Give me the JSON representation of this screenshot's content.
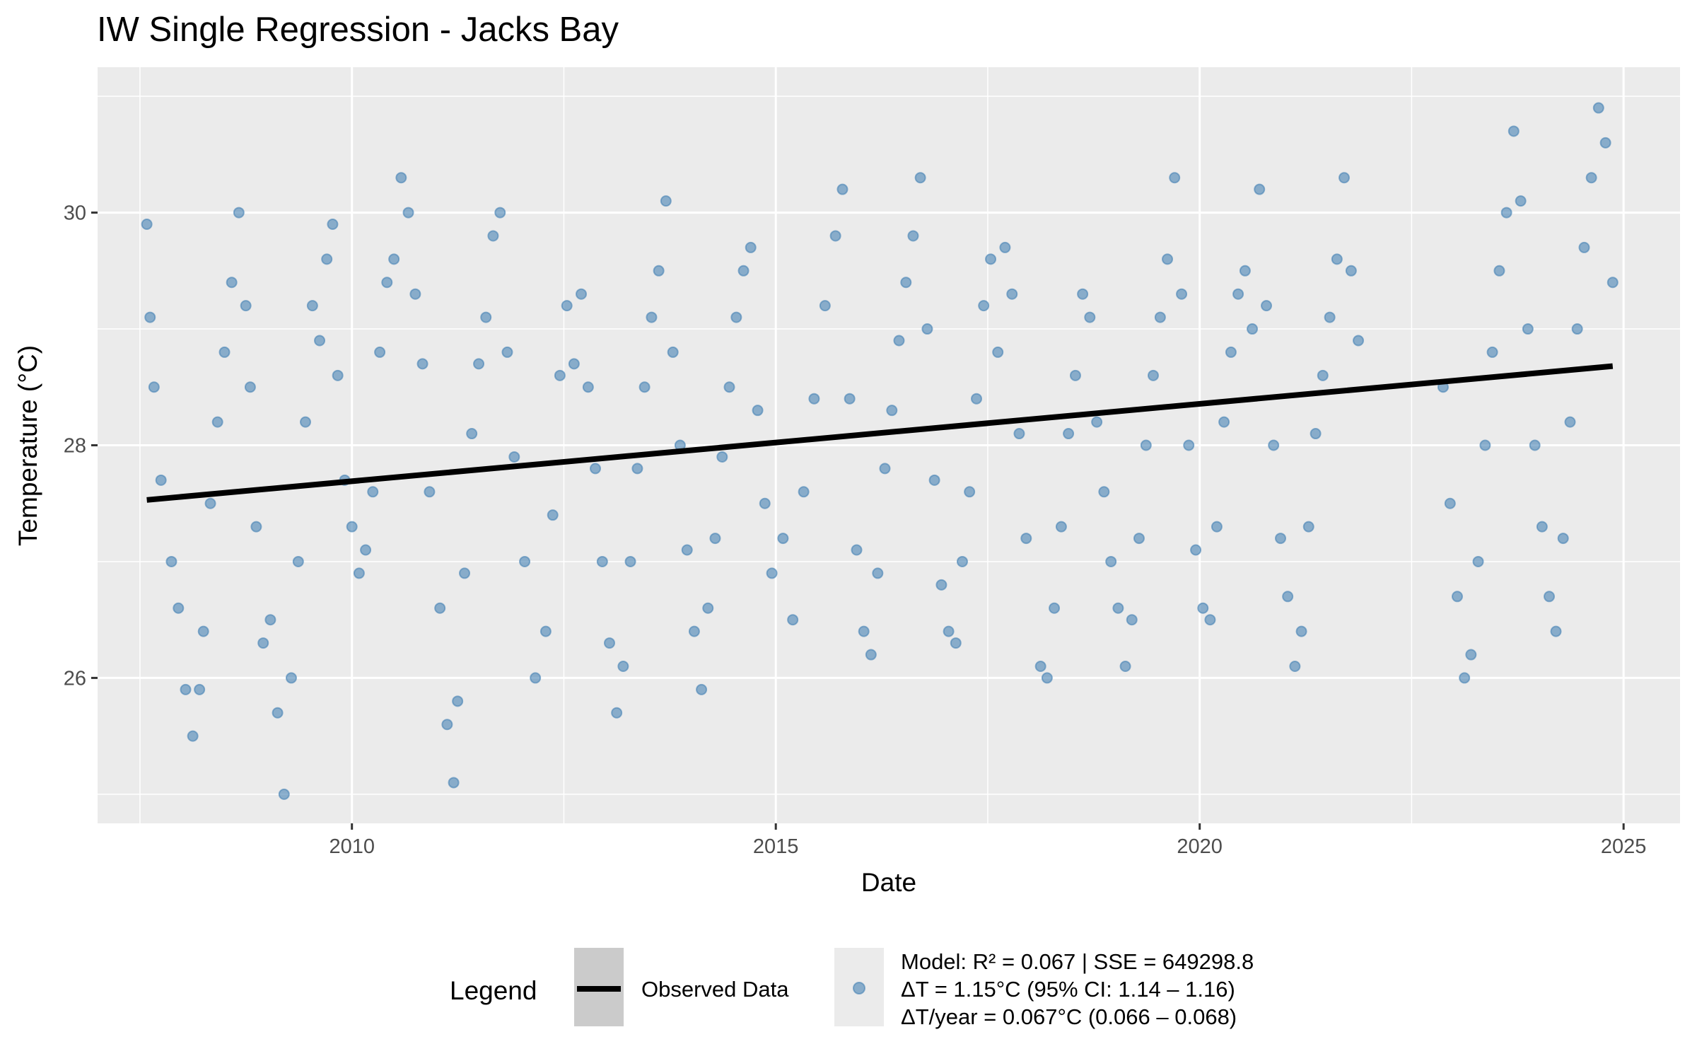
{
  "chart_data": {
    "type": "scatter",
    "title": "IW Single Regression - Jacks Bay",
    "xlabel": "Date",
    "ylabel": "Temperature (°C)",
    "x_ticks": [
      "2010",
      "2015",
      "2020",
      "2025"
    ],
    "y_ticks": [
      "26",
      "28",
      "30"
    ],
    "xlim": [
      "2007-01-01",
      "2025-09-01"
    ],
    "ylim": [
      24.75,
      31.25
    ],
    "grid": true,
    "background": "#ebebeb",
    "series": [
      {
        "name": "Observed Data",
        "kind": "points",
        "color": "#4682b4",
        "points": [
          [
            "2007-08-01",
            29.9
          ],
          [
            "2007-08-15",
            29.1
          ],
          [
            "2007-09-01",
            28.5
          ],
          [
            "2007-10-01",
            27.7
          ],
          [
            "2007-11-15",
            27.0
          ],
          [
            "2007-12-15",
            26.6
          ],
          [
            "2008-01-15",
            25.9
          ],
          [
            "2008-02-15",
            25.5
          ],
          [
            "2008-03-15",
            25.9
          ],
          [
            "2008-04-01",
            26.4
          ],
          [
            "2008-05-01",
            27.5
          ],
          [
            "2008-06-01",
            28.2
          ],
          [
            "2008-07-01",
            28.8
          ],
          [
            "2008-08-01",
            29.4
          ],
          [
            "2008-09-01",
            30.0
          ],
          [
            "2008-10-01",
            29.2
          ],
          [
            "2008-10-20",
            28.5
          ],
          [
            "2008-11-15",
            27.3
          ],
          [
            "2008-12-15",
            26.3
          ],
          [
            "2009-01-15",
            26.5
          ],
          [
            "2009-02-15",
            25.7
          ],
          [
            "2009-03-15",
            25.0
          ],
          [
            "2009-04-15",
            26.0
          ],
          [
            "2009-05-15",
            27.0
          ],
          [
            "2009-06-15",
            28.2
          ],
          [
            "2009-07-15",
            29.2
          ],
          [
            "2009-08-15",
            28.9
          ],
          [
            "2009-09-15",
            29.6
          ],
          [
            "2009-10-10",
            29.9
          ],
          [
            "2009-11-01",
            28.6
          ],
          [
            "2009-12-01",
            27.7
          ],
          [
            "2010-01-01",
            27.3
          ],
          [
            "2010-02-01",
            26.9
          ],
          [
            "2010-03-01",
            27.1
          ],
          [
            "2010-04-01",
            27.6
          ],
          [
            "2010-05-01",
            28.8
          ],
          [
            "2010-06-01",
            29.4
          ],
          [
            "2010-07-01",
            29.6
          ],
          [
            "2010-08-01",
            30.3
          ],
          [
            "2010-09-01",
            30.0
          ],
          [
            "2010-10-01",
            29.3
          ],
          [
            "2010-11-01",
            28.7
          ],
          [
            "2010-12-01",
            27.6
          ],
          [
            "2011-01-15",
            26.6
          ],
          [
            "2011-02-15",
            25.6
          ],
          [
            "2011-03-15",
            25.1
          ],
          [
            "2011-04-01",
            25.8
          ],
          [
            "2011-05-01",
            26.9
          ],
          [
            "2011-06-01",
            28.1
          ],
          [
            "2011-07-01",
            28.7
          ],
          [
            "2011-08-01",
            29.1
          ],
          [
            "2011-09-01",
            29.8
          ],
          [
            "2011-10-01",
            30.0
          ],
          [
            "2011-11-01",
            28.8
          ],
          [
            "2011-12-01",
            27.9
          ],
          [
            "2012-01-15",
            27.0
          ],
          [
            "2012-03-01",
            26.0
          ],
          [
            "2012-04-15",
            26.4
          ],
          [
            "2012-05-15",
            27.4
          ],
          [
            "2012-06-15",
            28.6
          ],
          [
            "2012-07-15",
            29.2
          ],
          [
            "2012-08-15",
            28.7
          ],
          [
            "2012-09-15",
            29.3
          ],
          [
            "2012-10-15",
            28.5
          ],
          [
            "2012-11-15",
            27.8
          ],
          [
            "2012-12-15",
            27.0
          ],
          [
            "2013-01-15",
            26.3
          ],
          [
            "2013-02-15",
            25.7
          ],
          [
            "2013-03-15",
            26.1
          ],
          [
            "2013-04-15",
            27.0
          ],
          [
            "2013-05-15",
            27.8
          ],
          [
            "2013-06-15",
            28.5
          ],
          [
            "2013-07-15",
            29.1
          ],
          [
            "2013-08-15",
            29.5
          ],
          [
            "2013-09-15",
            30.1
          ],
          [
            "2013-10-15",
            28.8
          ],
          [
            "2013-11-15",
            28.0
          ],
          [
            "2013-12-15",
            27.1
          ],
          [
            "2014-01-15",
            26.4
          ],
          [
            "2014-02-15",
            25.9
          ],
          [
            "2014-03-15",
            26.6
          ],
          [
            "2014-04-15",
            27.2
          ],
          [
            "2014-05-15",
            27.9
          ],
          [
            "2014-06-15",
            28.5
          ],
          [
            "2014-07-15",
            29.1
          ],
          [
            "2014-08-15",
            29.5
          ],
          [
            "2014-09-15",
            29.7
          ],
          [
            "2014-10-15",
            28.3
          ],
          [
            "2014-11-15",
            27.5
          ],
          [
            "2014-12-15",
            26.9
          ],
          [
            "2015-02-01",
            27.2
          ],
          [
            "2015-03-15",
            26.5
          ],
          [
            "2015-05-01",
            27.6
          ],
          [
            "2015-06-15",
            28.4
          ],
          [
            "2015-08-01",
            29.2
          ],
          [
            "2015-09-15",
            29.8
          ],
          [
            "2015-10-15",
            30.2
          ],
          [
            "2015-11-15",
            28.4
          ],
          [
            "2015-12-15",
            27.1
          ],
          [
            "2016-01-15",
            26.4
          ],
          [
            "2016-02-15",
            26.2
          ],
          [
            "2016-03-15",
            26.9
          ],
          [
            "2016-04-15",
            27.8
          ],
          [
            "2016-05-15",
            28.3
          ],
          [
            "2016-06-15",
            28.9
          ],
          [
            "2016-07-15",
            29.4
          ],
          [
            "2016-08-15",
            29.8
          ],
          [
            "2016-09-15",
            30.3
          ],
          [
            "2016-10-15",
            29.0
          ],
          [
            "2016-11-15",
            27.7
          ],
          [
            "2016-12-15",
            26.8
          ],
          [
            "2017-01-15",
            26.4
          ],
          [
            "2017-02-15",
            26.3
          ],
          [
            "2017-03-15",
            27.0
          ],
          [
            "2017-04-15",
            27.6
          ],
          [
            "2017-05-15",
            28.4
          ],
          [
            "2017-06-15",
            29.2
          ],
          [
            "2017-07-15",
            29.6
          ],
          [
            "2017-08-15",
            28.8
          ],
          [
            "2017-09-15",
            29.7
          ],
          [
            "2017-10-15",
            29.3
          ],
          [
            "2017-11-15",
            28.1
          ],
          [
            "2017-12-15",
            27.2
          ],
          [
            "2018-02-15",
            26.1
          ],
          [
            "2018-03-15",
            26.0
          ],
          [
            "2018-04-15",
            26.6
          ],
          [
            "2018-05-15",
            27.3
          ],
          [
            "2018-06-15",
            28.1
          ],
          [
            "2018-07-15",
            28.6
          ],
          [
            "2018-08-15",
            29.3
          ],
          [
            "2018-09-15",
            29.1
          ],
          [
            "2018-10-15",
            28.2
          ],
          [
            "2018-11-15",
            27.6
          ],
          [
            "2018-12-15",
            27.0
          ],
          [
            "2019-01-15",
            26.6
          ],
          [
            "2019-02-15",
            26.1
          ],
          [
            "2019-03-15",
            26.5
          ],
          [
            "2019-04-15",
            27.2
          ],
          [
            "2019-05-15",
            28.0
          ],
          [
            "2019-06-15",
            28.6
          ],
          [
            "2019-07-15",
            29.1
          ],
          [
            "2019-08-15",
            29.6
          ],
          [
            "2019-09-15",
            30.3
          ],
          [
            "2019-10-15",
            29.3
          ],
          [
            "2019-11-15",
            28.0
          ],
          [
            "2019-12-15",
            27.1
          ],
          [
            "2020-01-15",
            26.6
          ],
          [
            "2020-02-15",
            26.5
          ],
          [
            "2020-03-15",
            27.3
          ],
          [
            "2020-04-15",
            28.2
          ],
          [
            "2020-05-15",
            28.8
          ],
          [
            "2020-06-15",
            29.3
          ],
          [
            "2020-07-15",
            29.5
          ],
          [
            "2020-08-15",
            29.0
          ],
          [
            "2020-09-15",
            30.2
          ],
          [
            "2020-10-15",
            29.2
          ],
          [
            "2020-11-15",
            28.0
          ],
          [
            "2020-12-15",
            27.2
          ],
          [
            "2021-01-15",
            26.7
          ],
          [
            "2021-02-15",
            26.1
          ],
          [
            "2021-03-15",
            26.4
          ],
          [
            "2021-04-15",
            27.3
          ],
          [
            "2021-05-15",
            28.1
          ],
          [
            "2021-06-15",
            28.6
          ],
          [
            "2021-07-15",
            29.1
          ],
          [
            "2021-08-15",
            29.6
          ],
          [
            "2021-09-15",
            30.3
          ],
          [
            "2021-10-15",
            29.5
          ],
          [
            "2021-11-15",
            28.9
          ],
          [
            "2022-11-15",
            28.5
          ],
          [
            "2022-12-15",
            27.5
          ],
          [
            "2023-01-15",
            26.7
          ],
          [
            "2023-02-15",
            26.0
          ],
          [
            "2023-03-15",
            26.2
          ],
          [
            "2023-04-15",
            27.0
          ],
          [
            "2023-05-15",
            28.0
          ],
          [
            "2023-06-15",
            28.8
          ],
          [
            "2023-07-15",
            29.5
          ],
          [
            "2023-08-15",
            30.0
          ],
          [
            "2023-09-15",
            30.7
          ],
          [
            "2023-10-15",
            30.1
          ],
          [
            "2023-11-15",
            29.0
          ],
          [
            "2023-12-15",
            28.0
          ],
          [
            "2024-01-15",
            27.3
          ],
          [
            "2024-02-15",
            26.7
          ],
          [
            "2024-03-15",
            26.4
          ],
          [
            "2024-04-15",
            27.2
          ],
          [
            "2024-05-15",
            28.2
          ],
          [
            "2024-06-15",
            29.0
          ],
          [
            "2024-07-15",
            29.7
          ],
          [
            "2024-08-15",
            30.3
          ],
          [
            "2024-09-15",
            30.9
          ],
          [
            "2024-10-15",
            30.6
          ],
          [
            "2024-11-15",
            29.4
          ]
        ]
      },
      {
        "name": "Regression",
        "kind": "line",
        "color": "#000000",
        "points": [
          [
            "2007-08-01",
            27.53
          ],
          [
            "2024-11-15",
            28.68
          ]
        ]
      }
    ],
    "legend": {
      "title": "Legend",
      "position": "bottom",
      "line_label": "Observed Data",
      "point_label_lines": [
        "Model: R² = 0.067 | SSE = 649298.8",
        "ΔT = 1.15°C (95% CI: 1.14 – 1.16)",
        "ΔT/year = 0.067°C (0.066 – 0.068)"
      ]
    }
  }
}
